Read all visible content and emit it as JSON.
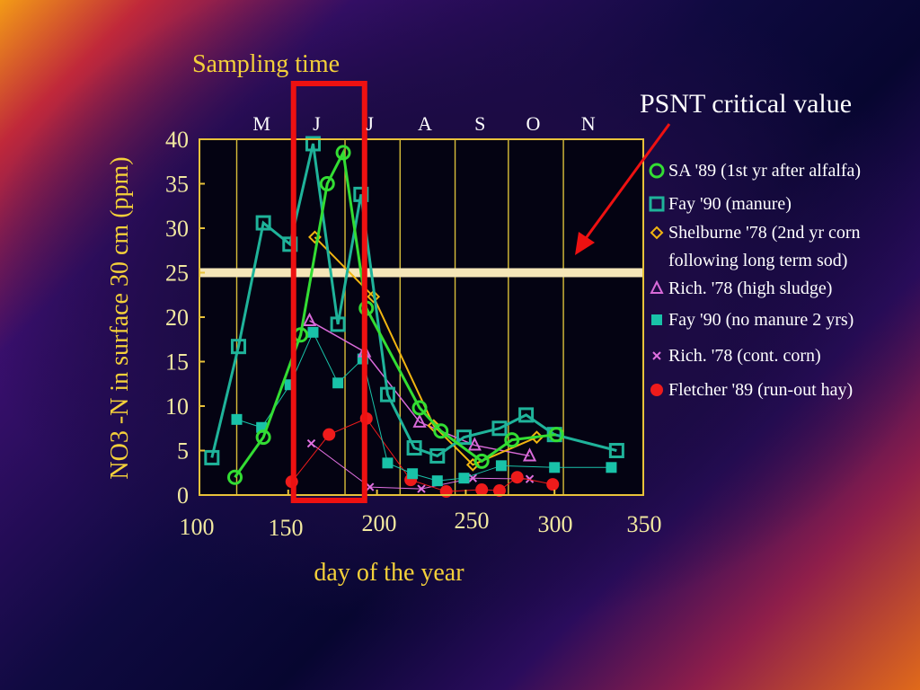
{
  "chart_data": {
    "type": "line",
    "annotations": {
      "sampling_time": "Sampling time",
      "psnt": "PSNT critical value",
      "psnt_value": 25,
      "sampling_window": [
        153,
        193
      ]
    },
    "xlabel": "day of the year",
    "ylabel": "NO3 -N in surface 30 cm (ppm)",
    "xlim": [
      100,
      350
    ],
    "ylim": [
      0,
      40
    ],
    "x_ticks": [
      {
        "value": 100,
        "label": "100"
      },
      {
        "value": 150,
        "label": "150"
      },
      {
        "value": 200,
        "label": "200"
      },
      {
        "value": 250,
        "label": "250"
      },
      {
        "value": 300,
        "label": "300"
      },
      {
        "value": 350,
        "label": "350"
      }
    ],
    "y_ticks": [
      {
        "value": 0,
        "label": "0"
      },
      {
        "value": 5,
        "label": "5"
      },
      {
        "value": 10,
        "label": "10"
      },
      {
        "value": 15,
        "label": "15"
      },
      {
        "value": 20,
        "label": "20"
      },
      {
        "value": 25,
        "label": "25"
      },
      {
        "value": 30,
        "label": "30"
      },
      {
        "value": 35,
        "label": "35"
      },
      {
        "value": 40,
        "label": "40"
      }
    ],
    "months": [
      {
        "label": "M",
        "x": 135
      },
      {
        "label": "J",
        "x": 166
      },
      {
        "label": "J",
        "x": 196
      },
      {
        "label": "A",
        "x": 227
      },
      {
        "label": "S",
        "x": 258
      },
      {
        "label": "O",
        "x": 288
      },
      {
        "label": "N",
        "x": 319
      }
    ],
    "month_gridlines": [
      121,
      152,
      182,
      213,
      244,
      274,
      305
    ],
    "series": [
      {
        "name": "SA '89 (1st yr after alfalfa)",
        "color": "#33dd33",
        "marker": "circle-open",
        "line_width": 3,
        "x": [
          120,
          136,
          157,
          172,
          181,
          194,
          224,
          236,
          259,
          276,
          301
        ],
        "y": [
          2,
          6.5,
          18,
          35,
          38.5,
          21,
          9.8,
          7.2,
          3.8,
          6.2,
          6.8
        ]
      },
      {
        "name": "Fay '90 (manure)",
        "color": "#1fb39a",
        "marker": "square-open",
        "line_width": 3,
        "x": [
          107,
          122,
          136,
          151,
          164,
          178,
          191,
          206,
          221,
          234,
          249,
          269,
          284,
          300,
          335
        ],
        "y": [
          4.2,
          16.7,
          30.6,
          28.2,
          39.5,
          19.2,
          33.8,
          11.3,
          5.3,
          4.4,
          6.5,
          7.5,
          9,
          6.8,
          5
        ]
      },
      {
        "name": "Shelburne '78 (2nd yr corn following long term sod)",
        "color": "#f1b511",
        "marker": "diamond-open",
        "line_width": 2,
        "x": [
          165,
          198,
          232,
          254,
          290
        ],
        "y": [
          29,
          22.3,
          7.8,
          3.4,
          6.5
        ]
      },
      {
        "name": "Rich. '78 (high sludge)",
        "color": "#d86ad8",
        "marker": "triangle-open",
        "line_width": 1.5,
        "x": [
          162,
          193,
          224,
          255,
          286
        ],
        "y": [
          19.6,
          16.1,
          8.2,
          5.6,
          4.4
        ]
      },
      {
        "name": "Fay '90 (no manure 2 yrs)",
        "color": "#19c2a8",
        "marker": "square-filled",
        "line_width": 1,
        "x": [
          121,
          135,
          151,
          164,
          178,
          192,
          206,
          220,
          234,
          249,
          270,
          300,
          332
        ],
        "y": [
          8.5,
          7.6,
          12.4,
          18.3,
          12.6,
          15.3,
          3.6,
          2.4,
          1.6,
          1.9,
          3.3,
          3.1,
          3.1
        ]
      },
      {
        "name": "Rich. '78 (cont. corn)",
        "color": "#e070e0",
        "marker": "x",
        "line_width": 1,
        "x": [
          163,
          196,
          225,
          254,
          286
        ],
        "y": [
          5.8,
          0.9,
          0.7,
          1.9,
          1.8
        ]
      },
      {
        "name": "Fletcher '89 (run-out hay)",
        "color": "#ee1b1b",
        "marker": "circle-filled",
        "line_width": 1,
        "x": [
          152,
          173,
          194,
          219,
          239,
          259,
          269,
          279,
          299
        ],
        "y": [
          1.5,
          6.8,
          8.6,
          1.7,
          0.4,
          0.6,
          0.5,
          2,
          1.2
        ]
      }
    ],
    "legend_lines": [
      [
        "SA '89 (1st yr after alfalfa)"
      ],
      [
        "Fay '90 (manure)"
      ],
      [
        "Shelburne '78 (2nd yr corn",
        "following long term sod)"
      ],
      [
        "Rich. '78 (high sludge)"
      ],
      [
        "Fay '90 (no manure 2 yrs)"
      ],
      [
        "Rich. '78 (cont. corn)"
      ],
      [
        "Fletcher '89 (run-out hay)"
      ]
    ]
  }
}
